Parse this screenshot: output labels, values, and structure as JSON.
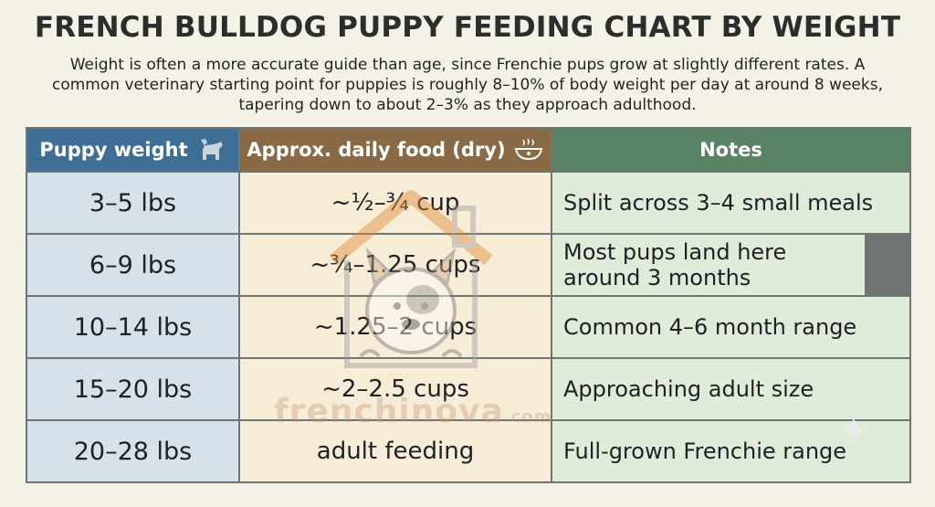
{
  "title": "FRENCH BULLDOG PUPPY FEEDING CHART BY WEIGHT",
  "subtitle": "Weight is often a more accurate guide than age, since Frenchie pups grow at slightly different rates. A common veterinary starting point for puppies is roughly 8–10% of body weight per day at around 8 weeks, tapering down to about 2–3% as they approach adulthood.",
  "headers": {
    "weight": "Puppy weight",
    "food": "Approx. daily food (dry)",
    "notes": "Notes"
  },
  "icons": {
    "weight": "dog-icon",
    "food": "food-bowl-icon",
    "watermark": "dog-house-logo-icon",
    "corner": "sparkle-icon"
  },
  "rows": [
    {
      "weight": "3–5 lbs",
      "food": "~½–¾ cup",
      "notes": "Split across 3–4 small meals"
    },
    {
      "weight": "6–9 lbs",
      "food": "~¾–1.25 cups",
      "notes": "Most pups land here around 3 months"
    },
    {
      "weight": "10–14 lbs",
      "food": "~1.25–2 cups",
      "notes": "Common 4–6 month range"
    },
    {
      "weight": "15–20 lbs",
      "food": "~2–2.5 cups",
      "notes": "Approaching adult size"
    },
    {
      "weight": "20–28 lbs",
      "food": "adult feeding",
      "notes": "Full-grown Frenchie range"
    }
  ],
  "watermark": {
    "name": "frenchinova",
    "domain": ".com"
  },
  "colors": {
    "header_weight": "#3e6d96",
    "header_food": "#8a6a45",
    "header_notes": "#5a8366",
    "col_weight_bg": "#d6e1ea",
    "col_food_bg": "#f7ecd6",
    "col_notes_bg": "#e0ebd9"
  }
}
